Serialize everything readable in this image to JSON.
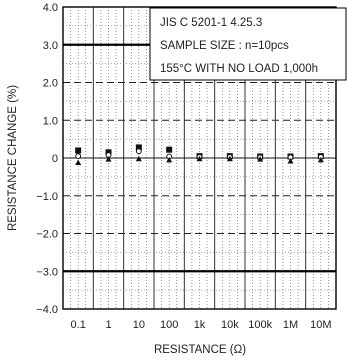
{
  "chart_data": {
    "type": "scatter",
    "title": "",
    "xlabel": "RESISTANCE (Ω)",
    "ylabel": "RESISTANCE  CHANGE (%)",
    "categories": [
      "0.1",
      "1",
      "10",
      "100",
      "1k",
      "10k",
      "100k",
      "1M",
      "10M"
    ],
    "ylim": [
      -4.0,
      4.0
    ],
    "yticks": [
      "4.0",
      "3.0",
      "2.0",
      "1.0",
      "0",
      "−1.0",
      "−2.0",
      "−3.0",
      "−4.0"
    ],
    "limit_lines": [
      3.0,
      -3.0
    ],
    "grid": true,
    "legend": "none",
    "annotation": [
      "JIS C 5201-1 4.25.3",
      "SAMPLE SIZE : n=10pcs",
      "155°C WITH NO LOAD 1,000h"
    ],
    "series": [
      {
        "marker": "square",
        "values": [
          0.2,
          0.15,
          0.28,
          0.22,
          0.05,
          0.05,
          0.04,
          0.04,
          0.05
        ]
      },
      {
        "marker": "circle-open",
        "values": [
          0.05,
          0.08,
          0.18,
          0.04,
          0.03,
          0.03,
          0.02,
          0.02,
          0.03
        ]
      },
      {
        "marker": "triangle",
        "values": [
          -0.12,
          -0.03,
          -0.02,
          -0.05,
          -0.02,
          -0.02,
          -0.03,
          -0.08,
          -0.05
        ]
      }
    ],
    "colors": {
      "grid": "#555555",
      "frame": "#000000",
      "marker": "#111111"
    }
  }
}
